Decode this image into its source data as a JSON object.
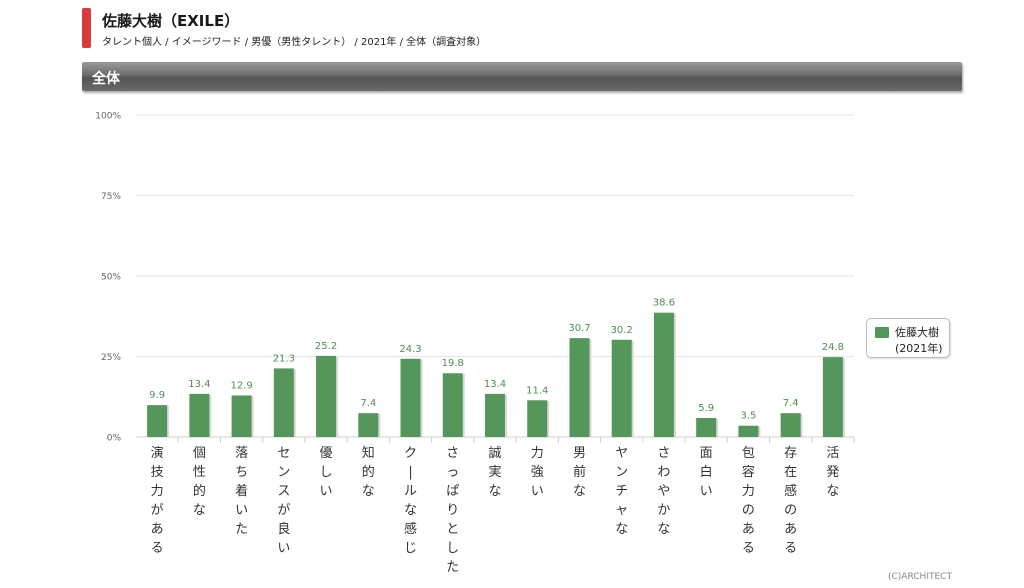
{
  "header": {
    "title": "佐藤大樹（EXILE）",
    "subtitle": "タレント個人 / イメージワード / 男優（男性タレント） / 2021年 / 全体（調査対象）"
  },
  "section": {
    "label": "全体"
  },
  "legend": {
    "name": "佐藤大樹",
    "year": "(2021年)"
  },
  "credit": "(C)ARCHITECT",
  "colors": {
    "bar": "#55965a",
    "value_label": "#4e8f52",
    "accent": "#d83a3f"
  },
  "chart_data": {
    "type": "bar",
    "title": "",
    "xlabel": "",
    "ylabel": "",
    "ylim": [
      0,
      100
    ],
    "yticks": [
      "0%",
      "25%",
      "50%",
      "75%",
      "100%"
    ],
    "yticks_values": [
      0,
      25,
      50,
      75,
      100
    ],
    "grid": true,
    "legend_position": "right",
    "categories": [
      "演技力がある",
      "個性的な",
      "落ち着いた",
      "センスが良い",
      "優しい",
      "知的な",
      "クールな感じ",
      "さっぱりとした",
      "誠実な",
      "力強い",
      "男前な",
      "ヤンチャな",
      "さわやかな",
      "面白い",
      "包容力のある",
      "存在感のある",
      "活発な"
    ],
    "series": [
      {
        "name": "佐藤大樹 (2021年)",
        "values": [
          9.9,
          13.4,
          12.9,
          21.3,
          25.2,
          7.4,
          24.3,
          19.8,
          13.4,
          11.4,
          30.7,
          30.2,
          38.6,
          5.9,
          3.5,
          7.4,
          24.8
        ],
        "value_labels": [
          "9.9",
          "13.4",
          "12.9",
          "21.3",
          "25.2",
          "7.4",
          "24.3",
          "19.8",
          "13.4",
          "11.4",
          "30.7",
          "30.2",
          "38.6",
          "5.9",
          "3.5",
          "7.4",
          "24.8"
        ]
      }
    ]
  }
}
